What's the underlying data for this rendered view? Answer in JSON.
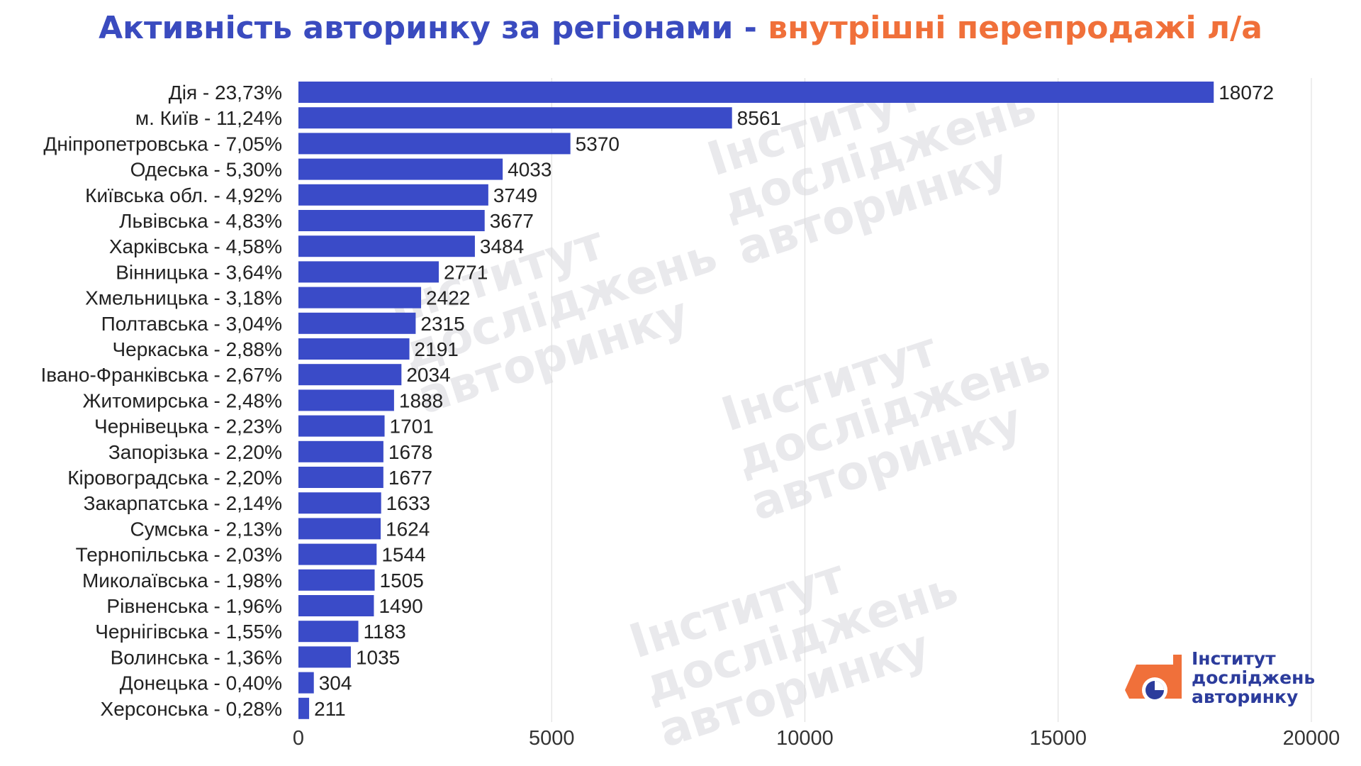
{
  "header": {
    "title_main": "Активність авторинку за регіонами",
    "title_sep": " - ",
    "title_accent": "внутрішні перепродажі л/а"
  },
  "logo": {
    "line1": "Інститут",
    "line2": "досліджень",
    "line3": "авторинку",
    "color_orange": "#f0703a",
    "color_blue": "#2c3c9c"
  },
  "watermark": {
    "line1": "Інститут",
    "line2": "досліджень",
    "line3": "авторинку"
  },
  "chart_data": {
    "type": "bar",
    "orientation": "horizontal",
    "title": "Активність авторинку за регіонами - внутрішні перепродажі л/а",
    "categories": [
      "Дія - 23,73%",
      "м. Київ - 11,24%",
      "Дніпропетровська - 7,05%",
      "Одеська - 5,30%",
      "Київська обл. - 4,92%",
      "Львівська - 4,83%",
      "Харківська - 4,58%",
      "Вінницька - 3,64%",
      "Хмельницька - 3,18%",
      "Полтавська - 3,04%",
      "Черкаська - 2,88%",
      "Івано-Франківська - 2,67%",
      "Житомирська - 2,48%",
      "Чернівецька - 2,23%",
      "Запорізька - 2,20%",
      "Кіровоградська - 2,20%",
      "Закарпатська - 2,14%",
      "Сумська - 2,13%",
      "Тернопільська - 2,03%",
      "Миколаївська - 1,98%",
      "Рівненська - 1,96%",
      "Чернігівська - 1,55%",
      "Волинська - 1,36%",
      "Донецька - 0,40%",
      "Херсонська - 0,28%"
    ],
    "values": [
      18072,
      8561,
      5370,
      4033,
      3749,
      3677,
      3484,
      2771,
      2422,
      2315,
      2191,
      2034,
      1888,
      1701,
      1678,
      1677,
      1633,
      1624,
      1544,
      1505,
      1490,
      1183,
      1035,
      304,
      211
    ],
    "xlim": [
      0,
      20000
    ],
    "xticks": [
      0,
      5000,
      10000,
      15000,
      20000
    ],
    "xlabel": "",
    "ylabel": "",
    "grid": "vertical",
    "legend": "none",
    "bar_color": "#3a4bc8",
    "data_labels": true
  }
}
